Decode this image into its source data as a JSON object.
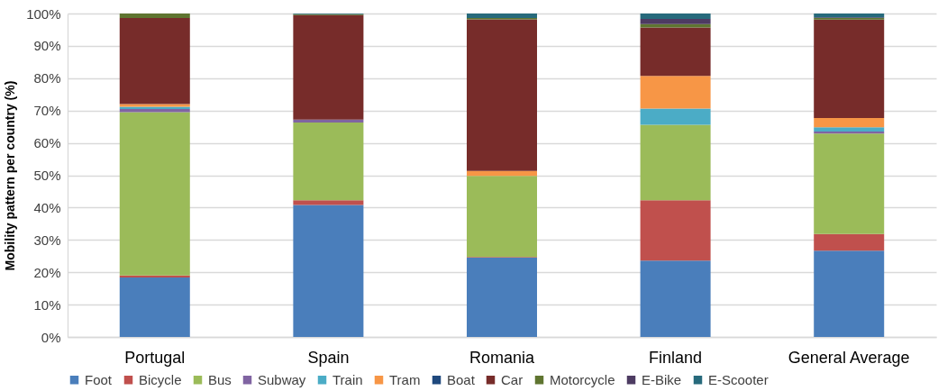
{
  "chart_data": {
    "type": "bar",
    "stacked": true,
    "categories": [
      "Portugal",
      "Spain",
      "Romania",
      "Finland",
      "General Average"
    ],
    "ylabel": "Mobility pattern per country (%)",
    "ylim": [
      0,
      100
    ],
    "yticks": [
      {
        "value": 0,
        "label": "0%"
      },
      {
        "value": 10,
        "label": "10%"
      },
      {
        "value": 20,
        "label": "20%"
      },
      {
        "value": 30,
        "label": "30%"
      },
      {
        "value": 40,
        "label": "40%"
      },
      {
        "value": 50,
        "label": "50%"
      },
      {
        "value": 60,
        "label": "60%"
      },
      {
        "value": 70,
        "label": "70%"
      },
      {
        "value": 80,
        "label": "80%"
      },
      {
        "value": 90,
        "label": "90%"
      },
      {
        "value": 100,
        "label": "100%"
      }
    ],
    "grid": "y",
    "legend": "bottom",
    "series": [
      {
        "name": "Foot",
        "color": "#4a7ebb",
        "values": [
          18.4,
          40.8,
          24.5,
          23.6,
          26.7
        ]
      },
      {
        "name": "Bicycle",
        "color": "#c0504d",
        "values": [
          0.6,
          1.5,
          0.2,
          18.7,
          5.1
        ]
      },
      {
        "name": "Bus",
        "color": "#9bbb59",
        "values": [
          50.5,
          24.0,
          25.1,
          23.3,
          31.1
        ]
      },
      {
        "name": "Subway",
        "color": "#8064a2",
        "values": [
          1.0,
          0.9,
          0,
          0,
          0.6
        ]
      },
      {
        "name": "Train",
        "color": "#4bacc6",
        "values": [
          0.7,
          0,
          0,
          5.0,
          1.3
        ]
      },
      {
        "name": "Tram",
        "color": "#f79646",
        "values": [
          0.8,
          0,
          1.5,
          10.1,
          2.9
        ]
      },
      {
        "name": "Boat",
        "color": "#1f497d",
        "values": [
          0,
          0,
          0,
          0,
          0
        ]
      },
      {
        "name": "Car",
        "color": "#772c2a",
        "values": [
          26.6,
          32.3,
          46.9,
          15.0,
          30.4
        ]
      },
      {
        "name": "Motorcycle",
        "color": "#5f7530",
        "values": [
          1.4,
          0.3,
          0.4,
          1.0,
          0.5
        ]
      },
      {
        "name": "E-Bike",
        "color": "#4d3b62",
        "values": [
          0,
          0,
          0,
          1.6,
          0.2
        ]
      },
      {
        "name": "E-Scooter",
        "color": "#276a7c",
        "values": [
          0,
          0.2,
          1.4,
          1.7,
          1.2
        ]
      }
    ]
  }
}
